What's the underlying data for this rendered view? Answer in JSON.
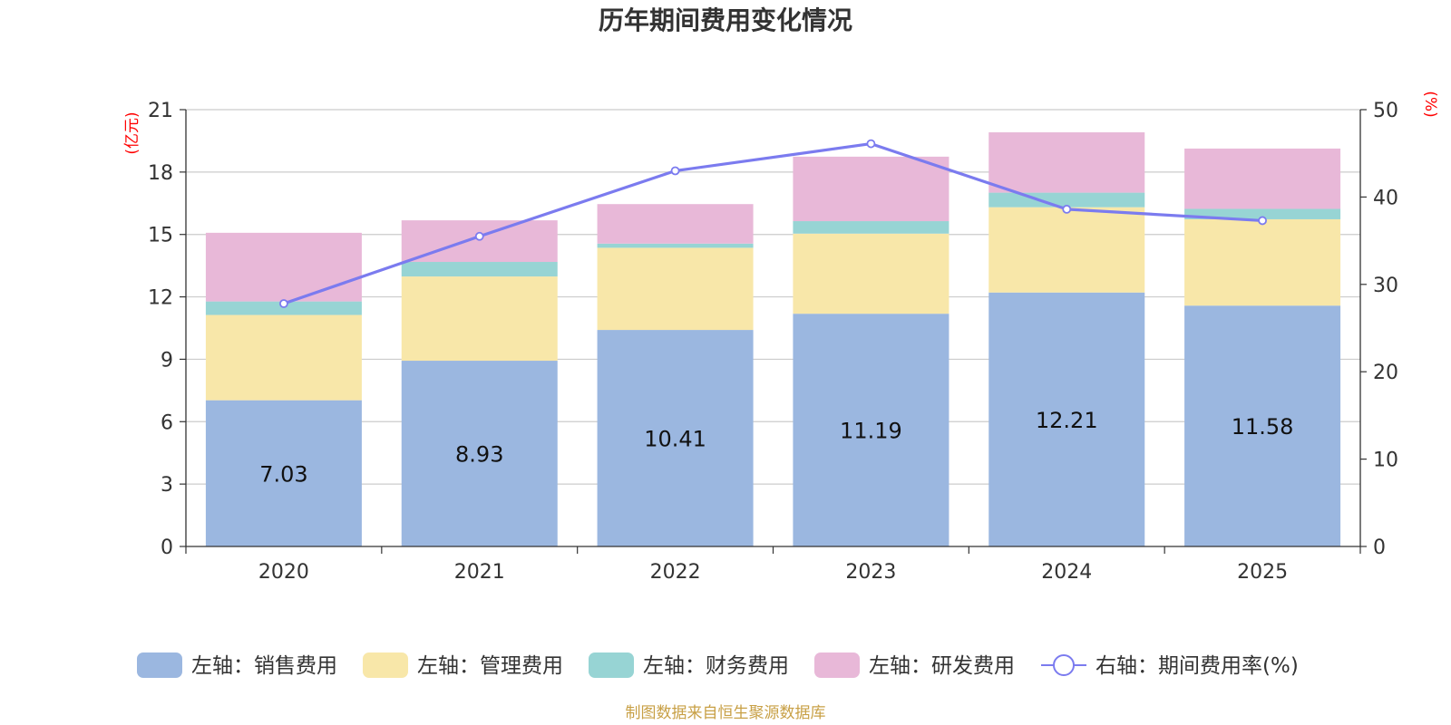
{
  "chart_data": {
    "type": "bar",
    "stacked": true,
    "title": "历年期间费用变化情况",
    "categories": [
      "2020",
      "2021",
      "2022",
      "2023",
      "2024",
      "2025"
    ],
    "left_axis": {
      "unit_label": "(亿元)",
      "ylim": [
        0,
        21
      ],
      "ticks": [
        0,
        3,
        6,
        9,
        12,
        15,
        18,
        21
      ]
    },
    "right_axis": {
      "unit_label": "(%)",
      "ylim": [
        0,
        50
      ],
      "ticks": [
        0,
        10,
        20,
        30,
        40,
        50
      ]
    },
    "series": [
      {
        "name": "左轴：销售费用",
        "axis": "left",
        "color": "#9bb7e0",
        "values": [
          7.03,
          8.93,
          10.41,
          11.19,
          12.21,
          11.58
        ],
        "show_labels": true
      },
      {
        "name": "左轴：管理费用",
        "axis": "left",
        "color": "#f8e7a9",
        "values": [
          4.1,
          4.05,
          3.95,
          3.85,
          4.1,
          4.15
        ],
        "show_labels": false
      },
      {
        "name": "左轴：财务费用",
        "axis": "left",
        "color": "#97d4d4",
        "values": [
          0.65,
          0.7,
          0.2,
          0.6,
          0.7,
          0.5
        ],
        "show_labels": false
      },
      {
        "name": "左轴：研发费用",
        "axis": "left",
        "color": "#e8b8d8",
        "values": [
          3.3,
          2.0,
          1.9,
          3.1,
          2.9,
          2.9
        ],
        "show_labels": false
      }
    ],
    "line_series": {
      "name": "右轴：期间费用率(%)",
      "axis": "right",
      "color": "#7b7bef",
      "values": [
        27.8,
        35.5,
        43.0,
        46.1,
        38.6,
        37.3
      ]
    },
    "legend_position": "bottom",
    "grid": true
  },
  "footer": {
    "source_text": "制图数据来自恒生聚源数据库"
  }
}
